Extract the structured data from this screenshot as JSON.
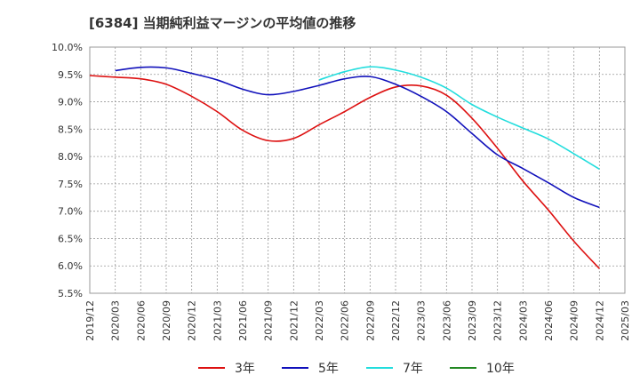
{
  "chart_data": {
    "type": "line",
    "title": "[6384]  当期純利益マージンの平均値の推移",
    "xlabel": "",
    "ylabel": "",
    "x": [
      "2019/12",
      "2020/03",
      "2020/06",
      "2020/09",
      "2020/12",
      "2021/03",
      "2021/06",
      "2021/09",
      "2021/12",
      "2022/03",
      "2022/06",
      "2022/09",
      "2022/12",
      "2023/03",
      "2023/06",
      "2023/09",
      "2023/12",
      "2024/03",
      "2024/06",
      "2024/09",
      "2024/12",
      "2025/03"
    ],
    "y_ticks": [
      "10.0%",
      "9.5%",
      "9.0%",
      "8.5%",
      "8.0%",
      "7.5%",
      "7.0%",
      "6.5%",
      "6.0%",
      "5.5%"
    ],
    "ylim": [
      5.5,
      10.0
    ],
    "grid": true,
    "legend_position": "bottom",
    "series": [
      {
        "name": "3年",
        "color": "#dd1111",
        "values": [
          9.48,
          9.45,
          9.42,
          9.32,
          9.1,
          8.82,
          8.48,
          8.29,
          8.33,
          8.58,
          8.82,
          9.08,
          9.27,
          9.29,
          9.12,
          8.7,
          8.15,
          7.55,
          7.02,
          6.45,
          5.95,
          null
        ]
      },
      {
        "name": "5年",
        "color": "#1111bb",
        "values": [
          null,
          9.57,
          9.63,
          9.62,
          9.52,
          9.4,
          9.23,
          9.13,
          9.19,
          9.3,
          9.42,
          9.46,
          9.32,
          9.1,
          8.82,
          8.42,
          8.03,
          7.78,
          7.52,
          7.25,
          7.07,
          null
        ]
      },
      {
        "name": "7年",
        "color": "#22dddd",
        "values": [
          null,
          null,
          null,
          null,
          null,
          null,
          null,
          null,
          null,
          9.4,
          9.55,
          9.64,
          9.58,
          9.45,
          9.25,
          8.95,
          8.72,
          8.52,
          8.32,
          8.05,
          7.77,
          null
        ]
      },
      {
        "name": "10年",
        "color": "#228822",
        "values": [
          null,
          null,
          null,
          null,
          null,
          null,
          null,
          null,
          null,
          null,
          null,
          null,
          null,
          null,
          null,
          null,
          null,
          null,
          null,
          null,
          null,
          null
        ]
      }
    ]
  }
}
